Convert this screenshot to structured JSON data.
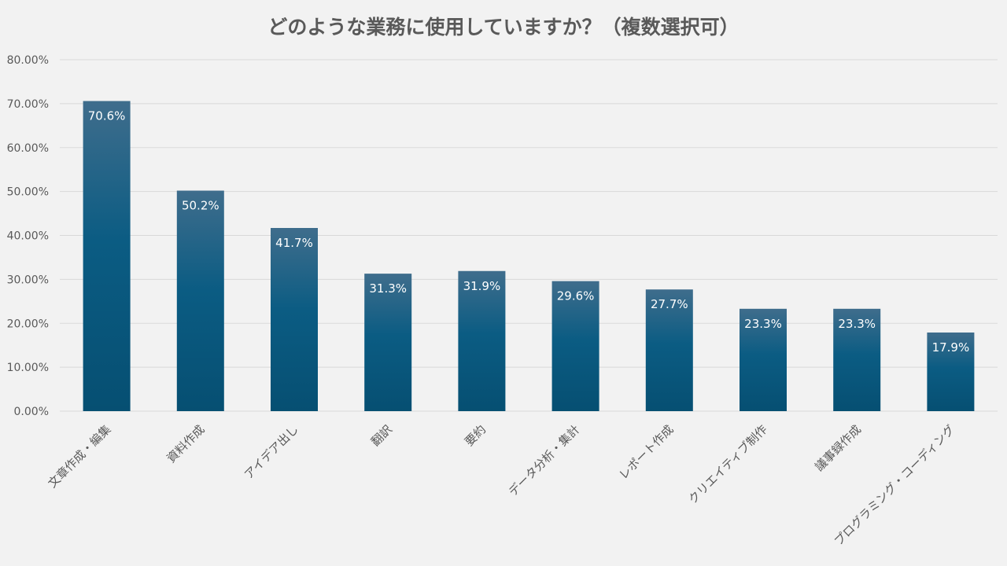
{
  "chart_data": {
    "type": "bar",
    "title": "どのような業務に使用していますか？（複数選択可）",
    "xlabel": "",
    "ylabel": "",
    "ylim": [
      0,
      80
    ],
    "y_ticks": [
      "0.00%",
      "10.00%",
      "20.00%",
      "30.00%",
      "40.00%",
      "50.00%",
      "60.00%",
      "70.00%",
      "80.00%"
    ],
    "y_tick_values": [
      0,
      10,
      20,
      30,
      40,
      50,
      60,
      70,
      80
    ],
    "grid": true,
    "categories": [
      "文章作成・編集",
      "資料作成",
      "アイデア出し",
      "翻訳",
      "要約",
      "データ分析・集計",
      "レポート作成",
      "クリエイティブ制作",
      "議事録作成",
      "プログラミング・コーディング"
    ],
    "values": [
      70.6,
      50.2,
      41.7,
      31.3,
      31.9,
      29.6,
      27.7,
      23.3,
      23.3,
      17.9
    ],
    "data_labels": [
      "70.6%",
      "50.2%",
      "41.7%",
      "31.3%",
      "31.9%",
      "29.6%",
      "27.7%",
      "23.3%",
      "23.3%",
      "17.9%"
    ]
  },
  "colors": {
    "background": "#f2f2f2",
    "bar_top": "#3f6d8c",
    "bar_mid": "#0b5c83",
    "bar_bottom": "#064f72",
    "text": "#595959",
    "grid": "#d9d9d9"
  }
}
